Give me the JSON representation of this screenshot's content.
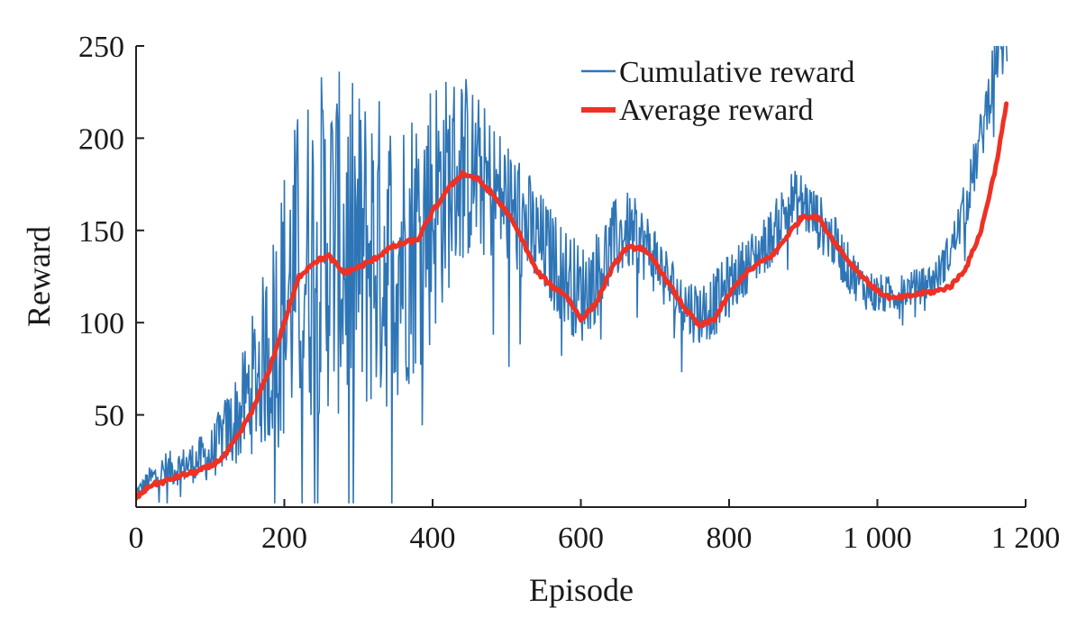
{
  "chart_data": {
    "type": "line",
    "title": "",
    "xlabel": "Episode",
    "ylabel": "Reward",
    "xlim": [
      0,
      1200
    ],
    "ylim": [
      0,
      250
    ],
    "x_ticks": [
      0,
      200,
      400,
      600,
      800,
      1000,
      1200
    ],
    "x_tick_labels": [
      "0",
      "200",
      "400",
      "600",
      "800",
      "1 000",
      "1 200"
    ],
    "y_ticks": [
      50,
      100,
      150,
      200,
      250
    ],
    "y_tick_labels": [
      "50",
      "100",
      "150",
      "200",
      "250"
    ],
    "grid": false,
    "legend_position": "top-right",
    "noise_seed": 12345,
    "series": [
      {
        "name": "Cumulative reward",
        "color": "#2e75b6",
        "style": "thin-noisy",
        "x": [
          0,
          20,
          40,
          60,
          80,
          100,
          120,
          140,
          160,
          180,
          200,
          220,
          240,
          260,
          280,
          300,
          320,
          340,
          360,
          380,
          400,
          420,
          440,
          460,
          480,
          500,
          520,
          540,
          560,
          580,
          600,
          620,
          640,
          660,
          680,
          700,
          720,
          740,
          760,
          780,
          800,
          820,
          840,
          860,
          880,
          900,
          920,
          940,
          960,
          980,
          1000,
          1020,
          1040,
          1060,
          1080,
          1100,
          1120,
          1140,
          1160,
          1175
        ],
        "values": [
          8,
          15,
          20,
          22,
          25,
          28,
          40,
          50,
          70,
          85,
          110,
          130,
          140,
          145,
          140,
          135,
          140,
          135,
          140,
          150,
          165,
          175,
          185,
          180,
          172,
          165,
          155,
          145,
          135,
          125,
          115,
          125,
          140,
          150,
          145,
          135,
          120,
          110,
          105,
          110,
          120,
          130,
          138,
          148,
          165,
          165,
          155,
          145,
          130,
          120,
          115,
          115,
          118,
          120,
          125,
          140,
          165,
          200,
          245,
          250
        ],
        "noise_amplitude": [
          3,
          8,
          10,
          10,
          12,
          14,
          20,
          28,
          40,
          55,
          80,
          90,
          95,
          95,
          95,
          95,
          90,
          85,
          80,
          78,
          78,
          60,
          55,
          45,
          40,
          38,
          35,
          30,
          28,
          28,
          28,
          25,
          25,
          22,
          20,
          20,
          18,
          18,
          18,
          18,
          18,
          16,
          16,
          16,
          18,
          18,
          16,
          15,
          14,
          12,
          12,
          10,
          10,
          10,
          10,
          12,
          14,
          16,
          18,
          15
        ]
      },
      {
        "name": "Average reward",
        "color": "#ee3124",
        "style": "thick-smooth",
        "x": [
          0,
          20,
          40,
          60,
          80,
          100,
          120,
          140,
          160,
          180,
          200,
          220,
          240,
          260,
          280,
          300,
          320,
          340,
          360,
          380,
          400,
          420,
          440,
          460,
          480,
          500,
          520,
          540,
          560,
          580,
          600,
          620,
          640,
          660,
          680,
          700,
          720,
          740,
          760,
          780,
          800,
          820,
          840,
          860,
          880,
          900,
          920,
          940,
          960,
          980,
          1000,
          1020,
          1040,
          1060,
          1080,
          1100,
          1120,
          1140,
          1160,
          1175
        ],
        "values": [
          5,
          12,
          14,
          17,
          19,
          22,
          28,
          40,
          55,
          75,
          100,
          125,
          133,
          136,
          127,
          130,
          134,
          140,
          143,
          145,
          160,
          172,
          181,
          178,
          170,
          160,
          146,
          128,
          120,
          115,
          102,
          110,
          128,
          140,
          141,
          133,
          120,
          108,
          98,
          102,
          115,
          126,
          132,
          137,
          148,
          158,
          157,
          145,
          134,
          125,
          117,
          113,
          114,
          116,
          117,
          120,
          130,
          150,
          185,
          220
        ]
      }
    ]
  }
}
